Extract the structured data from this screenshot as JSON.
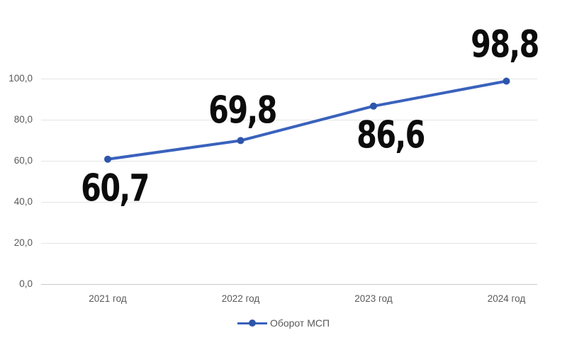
{
  "chart_data": {
    "type": "line",
    "categories": [
      "2021 год",
      "2022 год",
      "2023 год",
      "2024 год"
    ],
    "series": [
      {
        "name": "Оборот МСП",
        "values": [
          60.7,
          69.8,
          86.6,
          98.8
        ]
      }
    ],
    "data_labels": [
      "60,7",
      "69,8",
      "86,6",
      "98,8"
    ],
    "y_ticks": [
      "100,0",
      "80,0",
      "60,0",
      "40,0",
      "20,0",
      "0,0"
    ],
    "y_tick_values": [
      100,
      80,
      60,
      40,
      20,
      0
    ],
    "ylim": [
      0,
      100
    ],
    "grid": true,
    "legend_position": "bottom",
    "colors": {
      "line": "#3a62bd",
      "marker": "#2d55ab",
      "gridline": "#e4e4e4",
      "axis_line": "#c9c9c9",
      "axis_text": "#595959",
      "data_label_text": "#0c0c0c"
    }
  },
  "legend": {
    "label": "Оборот МСП"
  }
}
